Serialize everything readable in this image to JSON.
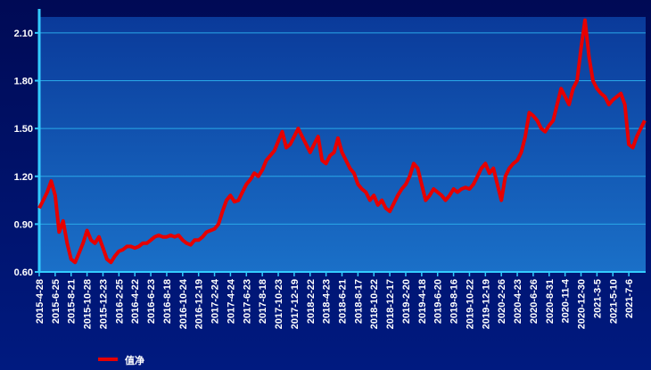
{
  "chart_data": {
    "type": "line",
    "categories": [
      "2015-4-28",
      null,
      null,
      null,
      "2015-6-25",
      null,
      null,
      null,
      "2015-8-21",
      null,
      null,
      null,
      "2015-10-28",
      null,
      null,
      null,
      "2015-12-23",
      null,
      null,
      null,
      "2016-2-25",
      null,
      null,
      null,
      "2016-4-22",
      null,
      null,
      null,
      "2016-6-23",
      null,
      null,
      null,
      "2016-8-18",
      null,
      null,
      null,
      "2016-10-24",
      null,
      null,
      null,
      "2016-12-19",
      null,
      null,
      null,
      "2017-2-24",
      null,
      null,
      null,
      "2017-4-24",
      null,
      null,
      null,
      "2017-6-23",
      null,
      null,
      null,
      "2017-8-18",
      null,
      null,
      null,
      "2017-10-23",
      null,
      null,
      null,
      "2017-12-19",
      null,
      null,
      null,
      "2018-2-22",
      null,
      null,
      null,
      "2018-4-23",
      null,
      null,
      null,
      "2018-6-21",
      null,
      null,
      null,
      "2018-8-17",
      null,
      null,
      null,
      "2018-10-22",
      null,
      null,
      null,
      "2018-12-17",
      null,
      null,
      null,
      "2019-2-20",
      null,
      null,
      null,
      "2019-4-18",
      null,
      null,
      null,
      "2019-6-20",
      null,
      null,
      null,
      "2019-8-16",
      null,
      null,
      null,
      "2019-10-22",
      null,
      null,
      null,
      "2019-12-19",
      null,
      null,
      null,
      "2020-2-26",
      null,
      null,
      null,
      "2020-4-23",
      null,
      null,
      null,
      "2020-6-26",
      null,
      null,
      null,
      "2020-8-31",
      null,
      null,
      null,
      "2020-11-4",
      null,
      null,
      null,
      "2020-12-30",
      null,
      null,
      null,
      "2021-3-5",
      null,
      null,
      null,
      "2021-5-10",
      null,
      null,
      null,
      "2021-7-6",
      null,
      null,
      null,
      null
    ],
    "series": [
      {
        "name": "值净",
        "color": "#e60000",
        "values": [
          1.0,
          1.05,
          1.1,
          1.17,
          1.08,
          0.85,
          0.92,
          0.78,
          0.68,
          0.66,
          0.72,
          0.78,
          0.86,
          0.8,
          0.78,
          0.82,
          0.75,
          0.68,
          0.66,
          0.7,
          0.73,
          0.74,
          0.76,
          0.76,
          0.75,
          0.76,
          0.78,
          0.78,
          0.8,
          0.82,
          0.83,
          0.82,
          0.82,
          0.83,
          0.82,
          0.83,
          0.8,
          0.78,
          0.77,
          0.8,
          0.8,
          0.82,
          0.85,
          0.86,
          0.87,
          0.9,
          0.98,
          1.05,
          1.08,
          1.04,
          1.05,
          1.1,
          1.15,
          1.18,
          1.22,
          1.2,
          1.24,
          1.3,
          1.33,
          1.36,
          1.42,
          1.48,
          1.38,
          1.4,
          1.45,
          1.5,
          1.45,
          1.4,
          1.35,
          1.4,
          1.45,
          1.3,
          1.28,
          1.33,
          1.35,
          1.44,
          1.35,
          1.3,
          1.25,
          1.22,
          1.15,
          1.12,
          1.1,
          1.05,
          1.08,
          1.02,
          1.05,
          1.0,
          0.98,
          1.03,
          1.08,
          1.12,
          1.15,
          1.2,
          1.28,
          1.25,
          1.15,
          1.05,
          1.08,
          1.12,
          1.1,
          1.08,
          1.05,
          1.08,
          1.12,
          1.1,
          1.12,
          1.13,
          1.12,
          1.15,
          1.2,
          1.25,
          1.28,
          1.22,
          1.25,
          1.15,
          1.05,
          1.2,
          1.25,
          1.28,
          1.3,
          1.35,
          1.45,
          1.6,
          1.58,
          1.55,
          1.5,
          1.48,
          1.52,
          1.55,
          1.65,
          1.75,
          1.7,
          1.65,
          1.75,
          1.8,
          2.0,
          2.18,
          1.95,
          1.8,
          1.75,
          1.72,
          1.7,
          1.65,
          1.68,
          1.7,
          1.72,
          1.65,
          1.4,
          1.38,
          1.45,
          1.5,
          1.55
        ]
      }
    ],
    "ylim": [
      0.6,
      2.2
    ],
    "yticks": [
      {
        "value": 0.6,
        "label": "0.60"
      },
      {
        "value": 0.9,
        "label": "0.90"
      },
      {
        "value": 1.2,
        "label": "1.20"
      },
      {
        "value": 1.5,
        "label": "1.50"
      },
      {
        "value": 1.8,
        "label": "1.80"
      },
      {
        "value": 2.1,
        "label": "2.10"
      }
    ],
    "grid": true
  }
}
